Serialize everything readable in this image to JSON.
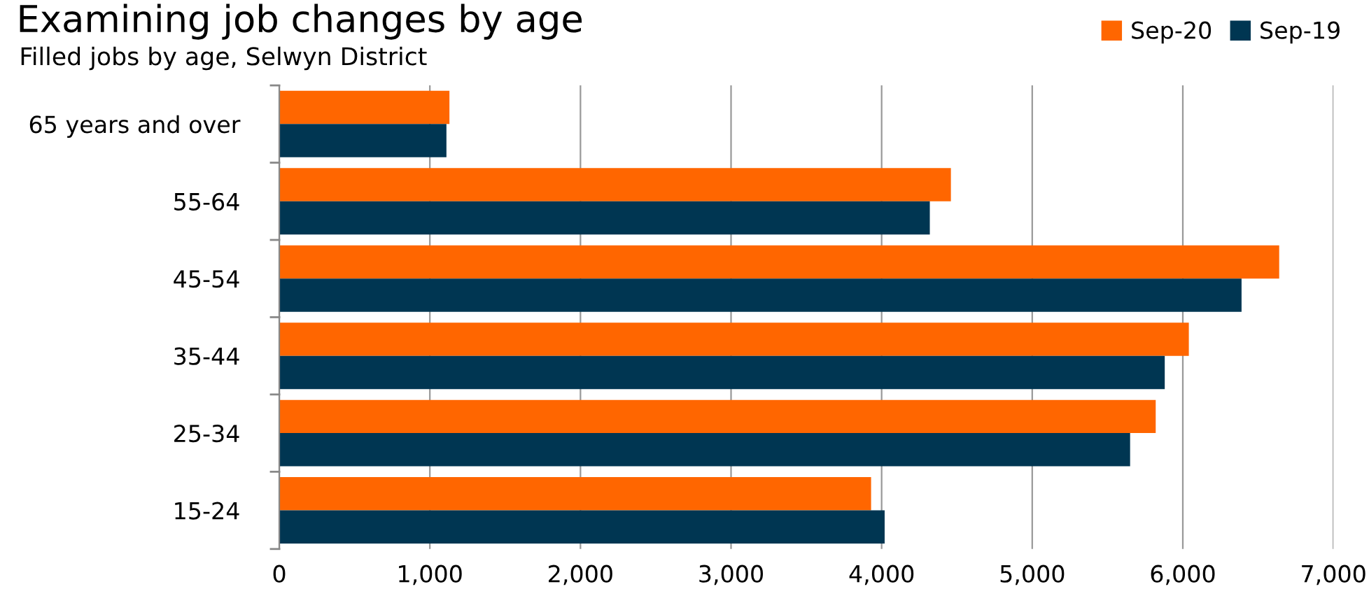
{
  "chart_data": {
    "type": "bar",
    "orientation": "horizontal",
    "title": "Examining job changes by age",
    "subtitle": "Filled jobs by age, Selwyn District",
    "categories": [
      "65 years and over",
      "55-64",
      "45-54",
      "35-44",
      "25-34",
      "15-24"
    ],
    "series": [
      {
        "name": "Sep-20",
        "color": "#ff6600",
        "values": [
          1130,
          4460,
          6640,
          6040,
          5820,
          3930
        ]
      },
      {
        "name": "Sep-19",
        "color": "#003652",
        "values": [
          1110,
          4320,
          6390,
          5880,
          5650,
          4020
        ]
      }
    ],
    "xlim": [
      0,
      7000
    ],
    "xticks": [
      {
        "value": 0,
        "label": "0"
      },
      {
        "value": 1000,
        "label": "1,000"
      },
      {
        "value": 2000,
        "label": "2,000"
      },
      {
        "value": 3000,
        "label": "3,000"
      },
      {
        "value": 4000,
        "label": "4,000"
      },
      {
        "value": 5000,
        "label": "5,000"
      },
      {
        "value": 6000,
        "label": "6,000"
      },
      {
        "value": 7000,
        "label": "7,000"
      }
    ],
    "grid": "x",
    "legend": "top right"
  }
}
